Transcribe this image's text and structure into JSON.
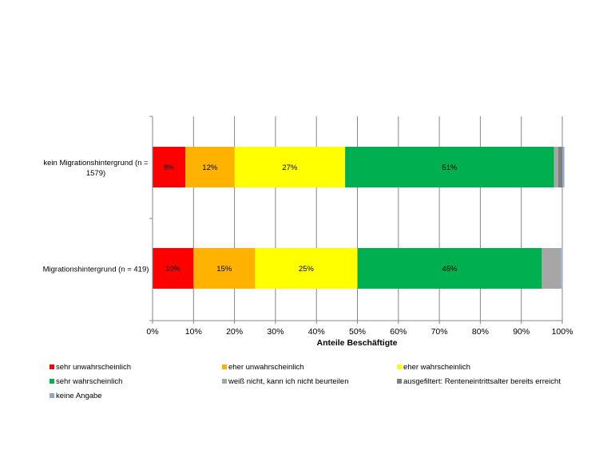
{
  "chart_data": {
    "type": "bar",
    "orientation": "horizontal",
    "stacked": true,
    "xlabel": "Anteile Beschäftigte",
    "xlim": [
      0,
      100
    ],
    "x_ticks": [
      "0%",
      "10%",
      "20%",
      "30%",
      "40%",
      "50%",
      "60%",
      "70%",
      "80%",
      "90%",
      "100%"
    ],
    "categories": [
      [
        "kein Migrationshintergrund (n =",
        "1579)"
      ],
      [
        "Migrationshintergrund (n = 419)"
      ]
    ],
    "series": [
      {
        "name": "sehr unwahrscheinlich",
        "color": "#FF0000",
        "values": [
          8,
          10
        ],
        "labels": [
          "8%",
          "10%"
        ]
      },
      {
        "name": "eher unwahrscheinlich",
        "color": "#FFB300",
        "values": [
          12,
          15
        ],
        "labels": [
          "12%",
          "15%"
        ]
      },
      {
        "name": "eher wahrscheinlich",
        "color": "#FFFF00",
        "values": [
          27,
          25
        ],
        "labels": [
          "27%",
          "25%"
        ]
      },
      {
        "name": "sehr wahrscheinlich",
        "color": "#00B050",
        "values": [
          51,
          45
        ],
        "labels": [
          "51%",
          "45%"
        ]
      },
      {
        "name": "weiß nicht, kann ich nicht beurteilen",
        "color": "#A6A6A6",
        "values": [
          1,
          4.5
        ],
        "labels": [
          "",
          ""
        ]
      },
      {
        "name": "ausgefiltert: Renteneintrittsalter bereits erreicht",
        "color": "#7F7F7F",
        "values": [
          1,
          0
        ],
        "labels": [
          "",
          ""
        ]
      },
      {
        "name": "keine Angabe",
        "color": "#8EA9C1",
        "values": [
          0.5,
          0.3
        ],
        "labels": [
          "",
          ""
        ]
      }
    ],
    "grid": true,
    "legend_position": "bottom"
  }
}
